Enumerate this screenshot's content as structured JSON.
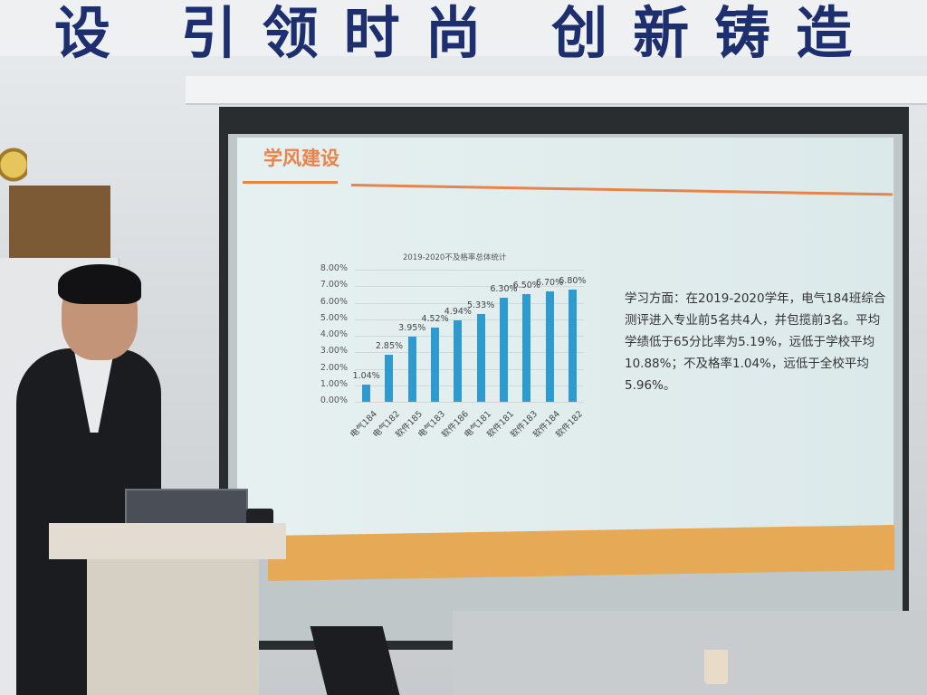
{
  "wall_banner": {
    "text": "设 引领时尚 创新铸造"
  },
  "slide": {
    "title": "学风建设",
    "description": "学习方面：在2019-2020学年，电气184班综合测评进入专业前5名共4人，并包揽前3名。平均学绩低于65分比率为5.19%，远低于学校平均10.88%；不及格率1.04%，远低于全校平均5.96%。",
    "colors": {
      "accent": "#e8834a",
      "bar": "#2e9bd0",
      "footer": "#e6a955"
    }
  },
  "chart_data": {
    "type": "bar",
    "title": "2019-2020不及格率总体统计",
    "categories": [
      "电气184",
      "电气182",
      "软件185",
      "电气183",
      "软件186",
      "电气181",
      "软件181",
      "软件183",
      "软件184",
      "软件182"
    ],
    "values": [
      1.04,
      2.85,
      3.95,
      4.52,
      4.94,
      5.33,
      6.3,
      6.5,
      6.7,
      6.8
    ],
    "data_labels": [
      "1.04%",
      "2.85%",
      "3.95%",
      "4.52%",
      "4.94%",
      "5.33%",
      "6.30%",
      "6.50%",
      "6.70%",
      "6.80%"
    ],
    "yticks": [
      "0.00%",
      "1.00%",
      "2.00%",
      "3.00%",
      "4.00%",
      "5.00%",
      "6.00%",
      "7.00%",
      "8.00%"
    ],
    "ylim": [
      0,
      8
    ],
    "grid": true,
    "xlabel": "",
    "ylabel": ""
  }
}
